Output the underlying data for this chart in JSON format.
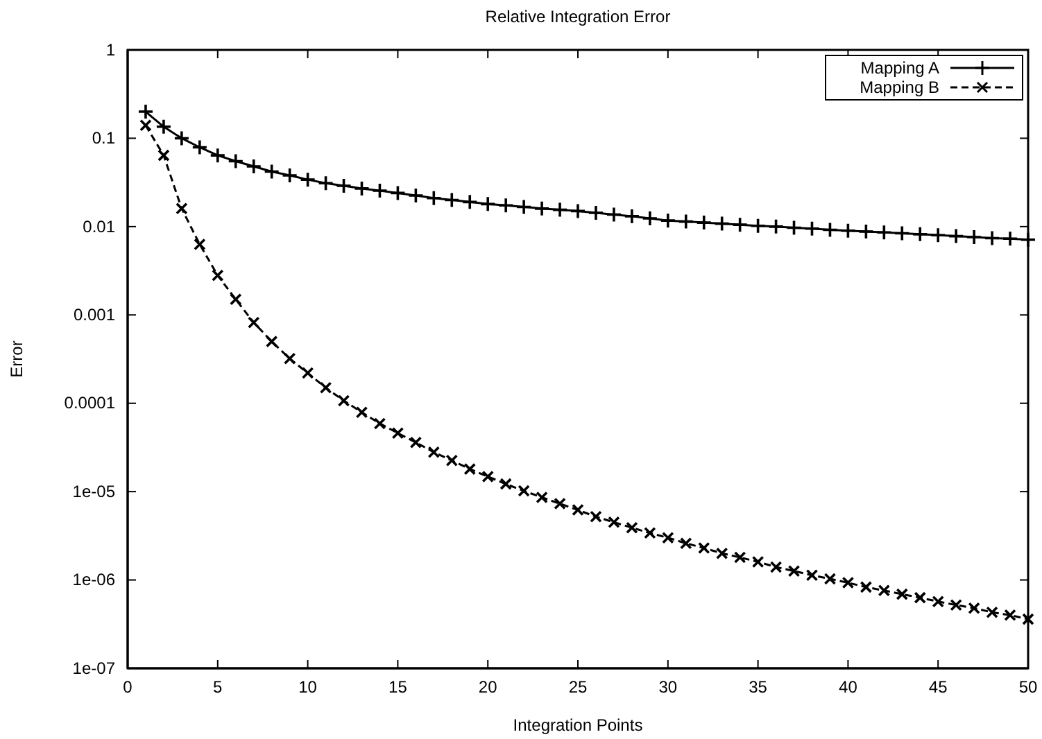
{
  "chart_data": {
    "type": "line",
    "title": "Relative Integration Error",
    "xlabel": "Integration Points",
    "ylabel": "Error",
    "log": "y",
    "legend": "top right",
    "grid": false,
    "xlim": [
      0,
      50
    ],
    "xticks": [
      0,
      5,
      10,
      15,
      20,
      25,
      30,
      35,
      40,
      45,
      50
    ],
    "ylim": [
      1e-07,
      1
    ],
    "yticks": [
      {
        "value": 1,
        "label": "1"
      },
      {
        "value": 0.1,
        "label": "0.1"
      },
      {
        "value": 0.01,
        "label": "0.01"
      },
      {
        "value": 0.001,
        "label": "0.001"
      },
      {
        "value": 0.0001,
        "label": "0.0001"
      },
      {
        "value": 1e-05,
        "label": "1e-05"
      },
      {
        "value": 1e-06,
        "label": "1e-06"
      },
      {
        "value": 1e-07,
        "label": "1e-07"
      }
    ],
    "x": [
      1,
      2,
      3,
      4,
      5,
      6,
      7,
      8,
      9,
      10,
      11,
      12,
      13,
      14,
      15,
      16,
      17,
      18,
      19,
      20,
      21,
      22,
      23,
      24,
      25,
      26,
      27,
      28,
      29,
      30,
      31,
      32,
      33,
      34,
      35,
      36,
      37,
      38,
      39,
      40,
      41,
      42,
      43,
      44,
      45,
      46,
      47,
      48,
      49,
      50
    ],
    "series": [
      {
        "name": "Mapping A",
        "color": "#000000",
        "marker": "plus",
        "line_style": "solid",
        "values": [
          0.2,
          0.135,
          0.1,
          0.079,
          0.064,
          0.055,
          0.048,
          0.042,
          0.038,
          0.034,
          0.031,
          0.029,
          0.027,
          0.0255,
          0.024,
          0.0225,
          0.021,
          0.02,
          0.019,
          0.018,
          0.0174,
          0.0167,
          0.016,
          0.0155,
          0.015,
          0.0143,
          0.0137,
          0.0131,
          0.0124,
          0.0117,
          0.0114,
          0.0111,
          0.0108,
          0.0105,
          0.0102,
          0.01,
          0.0097,
          0.0095,
          0.0092,
          0.009,
          0.0088,
          0.0086,
          0.0084,
          0.0082,
          0.008,
          0.0078,
          0.0076,
          0.0074,
          0.0073,
          0.0071
        ]
      },
      {
        "name": "Mapping B",
        "color": "#000000",
        "marker": "cross",
        "line_style": "dashed",
        "values": [
          0.14,
          0.064,
          0.016,
          0.0063,
          0.0028,
          0.0015,
          0.00082,
          0.0005,
          0.00032,
          0.00022,
          0.00015,
          0.000107,
          7.9e-05,
          5.9e-05,
          4.6e-05,
          3.6e-05,
          2.8e-05,
          2.25e-05,
          1.8e-05,
          1.48e-05,
          1.22e-05,
          1.02e-05,
          8.6e-06,
          7.3e-06,
          6.2e-06,
          5.2e-06,
          4.5e-06,
          3.9e-06,
          3.4e-06,
          3e-06,
          2.6e-06,
          2.3e-06,
          2e-06,
          1.8e-06,
          1.6e-06,
          1.4e-06,
          1.26e-06,
          1.13e-06,
          1.03e-06,
          9.3e-07,
          8.3e-07,
          7.6e-07,
          6.9e-07,
          6.3e-07,
          5.7e-07,
          5.2e-07,
          4.8e-07,
          4.3e-07,
          4e-07,
          3.6e-07
        ]
      }
    ]
  }
}
